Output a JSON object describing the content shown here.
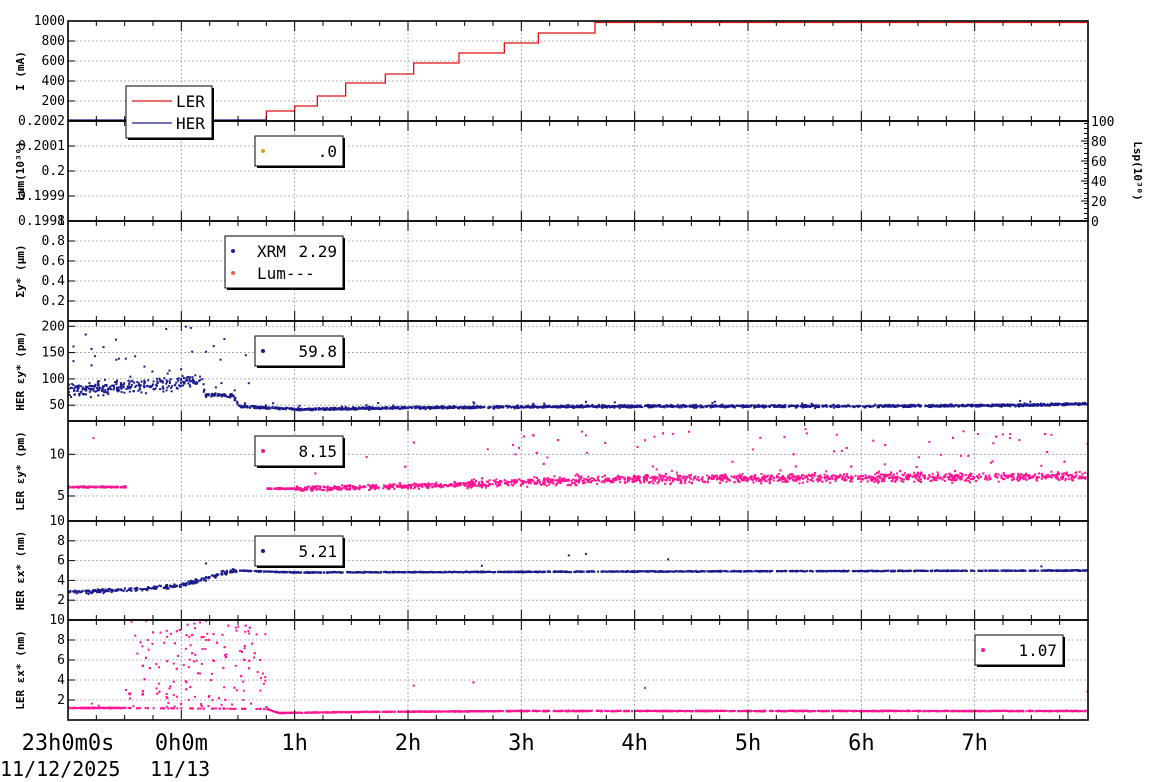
{
  "chart_data": {
    "type": "scatter",
    "x_axis": {
      "range_hours": [
        -1,
        8
      ],
      "tick_labels": [
        "23h0m0s",
        "0h0m",
        "1h",
        "2h",
        "3h",
        "4h",
        "5h",
        "6h",
        "7h"
      ],
      "date_labels": [
        "11/12/2025",
        "11/13"
      ]
    },
    "panels": [
      {
        "ylabel": "I (mA)",
        "ylim": [
          0,
          1000
        ],
        "yticks": [
          "200",
          "400",
          "600",
          "800",
          "1000"
        ],
        "legend": [
          {
            "name": "LER",
            "color": "#e01010"
          },
          {
            "name": "HER",
            "color": "#1a1a8c"
          }
        ],
        "series": [
          {
            "name": "LER",
            "steps": [
              [
                -1,
                0
              ],
              [
                0.75,
                100
              ],
              [
                1.0,
                150
              ],
              [
                1.2,
                250
              ],
              [
                1.45,
                380
              ],
              [
                1.8,
                470
              ],
              [
                2.05,
                580
              ],
              [
                2.45,
                680
              ],
              [
                2.85,
                780
              ],
              [
                3.15,
                880
              ],
              [
                3.65,
                985
              ],
              [
                8,
                985
              ]
            ]
          }
        ]
      },
      {
        "ylabel": "Lum(10³⁰)",
        "ylim": [
          0.1998,
          0.2002
        ],
        "yticks": [
          "0.1998",
          "0.1999",
          "0.2",
          "0.2001",
          "0.2002"
        ],
        "y2label": "Lsp(10³⁰)",
        "y2ticks": [
          "0",
          "20",
          "40",
          "60",
          "80",
          "100"
        ],
        "legend": [
          {
            "value": ".0",
            "color": "#d4a017"
          }
        ]
      },
      {
        "ylabel": "Σy* (μm)",
        "ylim": [
          0,
          1
        ],
        "yticks": [
          "0.2",
          "0.4",
          "0.6",
          "0.8",
          "1"
        ],
        "legend": [
          {
            "name": "XRM",
            "value": "2.29",
            "color": "#1a1aa8"
          },
          {
            "name": "Lum",
            "value": "---",
            "color": "#e8603c"
          }
        ]
      },
      {
        "ylabel": "HER εy* (pm)",
        "ylim": [
          20,
          210
        ],
        "yticks": [
          "50",
          "100",
          "150",
          "200"
        ],
        "legend": [
          {
            "value": "59.8",
            "color": "#1a1a8c"
          }
        ],
        "series": [
          {
            "name": "HER εy*",
            "color": "#1a1a8c",
            "profile": [
              [
                -1,
                80
              ],
              [
                0,
                95
              ],
              [
                0.18,
                100
              ],
              [
                0.2,
                72
              ],
              [
                0.45,
                70
              ],
              [
                0.5,
                50
              ],
              [
                1.0,
                44
              ],
              [
                2.0,
                47
              ],
              [
                4.0,
                50
              ],
              [
                6.0,
                50
              ],
              [
                7.5,
                52
              ],
              [
                8,
                55
              ]
            ]
          }
        ]
      },
      {
        "ylabel": "LER εy* (pm)",
        "ylim": [
          2,
          14
        ],
        "yticks": [
          "5",
          "10"
        ],
        "legend": [
          {
            "value": "8.15",
            "color": "#ff1493"
          }
        ],
        "series": [
          {
            "name": "LER εy*",
            "color": "#ff1493",
            "profile": [
              [
                -1,
                6.2
              ],
              [
                -0.5,
                6.2
              ],
              [
                0.75,
                6.0
              ],
              [
                1.0,
                6.0
              ],
              [
                2.0,
                6.3
              ],
              [
                3.0,
                6.8
              ],
              [
                4.0,
                7.2
              ],
              [
                6.0,
                7.3
              ],
              [
                8,
                7.5
              ]
            ]
          }
        ]
      },
      {
        "ylabel": "HER εx* (nm)",
        "ylim": [
          0,
          10
        ],
        "yticks": [
          "2",
          "4",
          "6",
          "8",
          "10"
        ],
        "legend": [
          {
            "value": "5.21",
            "color": "#1a1a8c"
          }
        ],
        "series": [
          {
            "name": "HER εx*",
            "color": "#1a1a8c",
            "profile": [
              [
                -1,
                2.9
              ],
              [
                -0.5,
                3.1
              ],
              [
                0,
                3.6
              ],
              [
                0.2,
                4.3
              ],
              [
                0.45,
                5.1
              ],
              [
                1.0,
                4.9
              ],
              [
                4.0,
                5.0
              ],
              [
                8,
                5.1
              ]
            ]
          }
        ]
      },
      {
        "ylabel": "LER εx* (nm)",
        "ylim": [
          0,
          10
        ],
        "yticks": [
          "2",
          "4",
          "6",
          "8",
          "10"
        ],
        "legend": [
          {
            "value": "1.07",
            "color": "#ff1493"
          }
        ],
        "series": [
          {
            "name": "LER εx*",
            "color": "#ff1493",
            "profile": [
              [
                -1,
                1.3
              ],
              [
                -0.5,
                1.3
              ],
              [
                0.75,
                1.2
              ],
              [
                0.85,
                0.8
              ],
              [
                1.5,
                0.9
              ],
              [
                3.0,
                1.0
              ],
              [
                8,
                1.0
              ]
            ]
          }
        ]
      }
    ]
  }
}
